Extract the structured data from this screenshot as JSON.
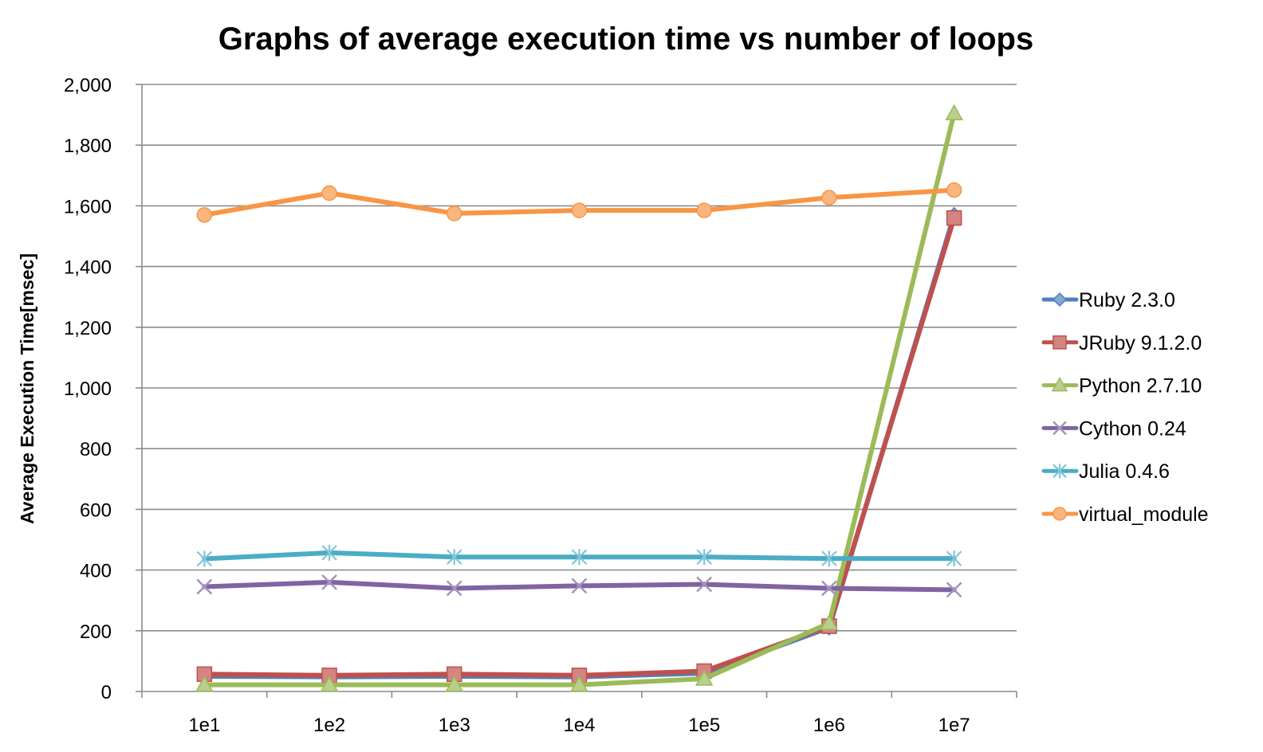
{
  "chart_data": {
    "type": "line",
    "title": "Graphs of average execution time vs number of loops",
    "xlabel": "",
    "ylabel": "Average Execution Time[msec]",
    "categories": [
      "1e1",
      "1e2",
      "1e3",
      "1e4",
      "1e5",
      "1e6",
      "1e7"
    ],
    "ylim": [
      0,
      2000
    ],
    "yticks": [
      0,
      200,
      400,
      600,
      800,
      1000,
      1200,
      1400,
      1600,
      1800,
      2000
    ],
    "ytick_labels": [
      "0",
      "200",
      "400",
      "600",
      "800",
      "1,000",
      "1,200",
      "1,400",
      "1,600",
      "1,800",
      "2,000"
    ],
    "grid": true,
    "legend_position": "right",
    "series": [
      {
        "name": "Ruby 2.3.0",
        "color": "#4f81bd",
        "marker": "diamond",
        "values": [
          50,
          48,
          50,
          48,
          60,
          210,
          1570
        ]
      },
      {
        "name": "JRuby 9.1.2.0",
        "color": "#c0504d",
        "marker": "square",
        "values": [
          57,
          53,
          57,
          53,
          67,
          215,
          1560
        ]
      },
      {
        "name": "Python 2.7.10",
        "color": "#9bbb59",
        "marker": "triangle",
        "values": [
          22,
          22,
          22,
          22,
          42,
          225,
          1905
        ]
      },
      {
        "name": "Cython 0.24",
        "color": "#8064a2",
        "marker": "x",
        "values": [
          345,
          360,
          340,
          348,
          353,
          340,
          335
        ]
      },
      {
        "name": "Julia 0.4.6",
        "color": "#4bacc6",
        "marker": "star",
        "values": [
          437,
          457,
          443,
          443,
          443,
          438,
          438
        ]
      },
      {
        "name": "virtual_module",
        "color": "#f79646",
        "marker": "circle",
        "values": [
          1570,
          1642,
          1575,
          1585,
          1585,
          1627,
          1652
        ]
      }
    ]
  }
}
